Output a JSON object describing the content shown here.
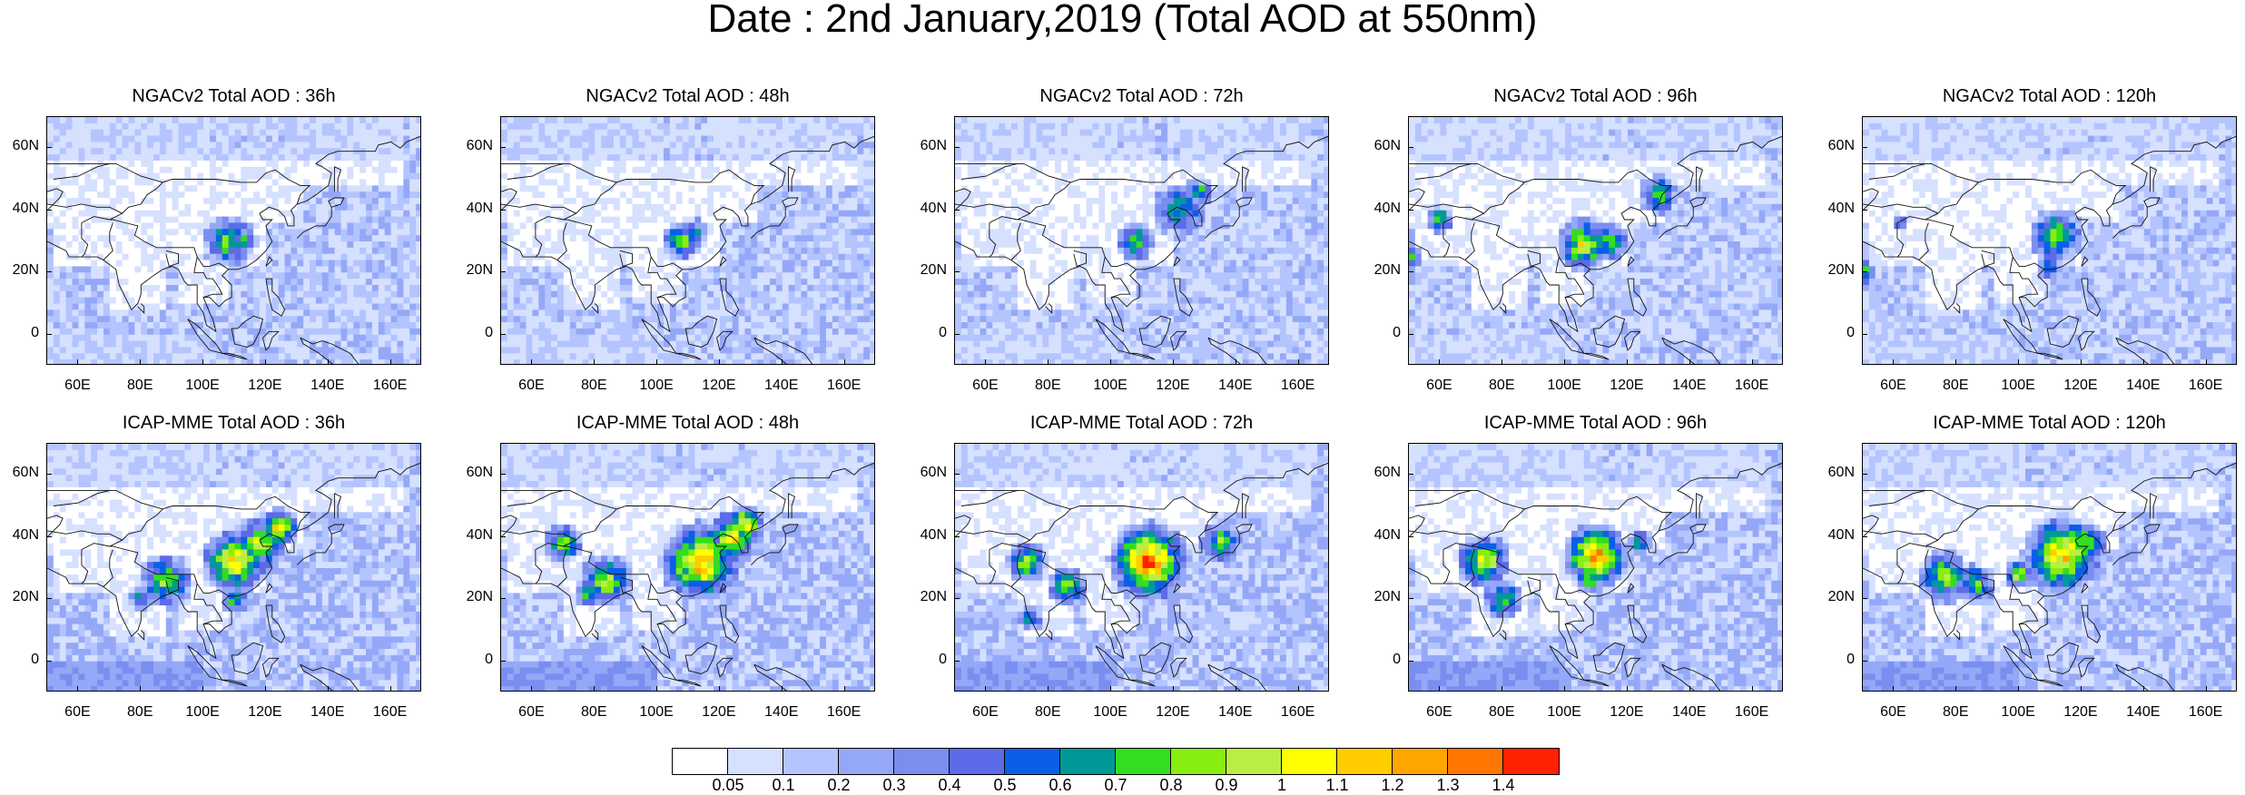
{
  "title": "Date : 2nd January,2019 (Total AOD at 550nm)",
  "map": {
    "y_labels": [
      "60N",
      "40N",
      "20N",
      "0"
    ],
    "x_labels": [
      "60E",
      "80E",
      "100E",
      "120E",
      "140E",
      "160E"
    ]
  },
  "panels": [
    {
      "title": "NGACv2 Total AOD : 36h",
      "model": "NGACv2",
      "lead": "36h"
    },
    {
      "title": "NGACv2 Total AOD : 48h",
      "model": "NGACv2",
      "lead": "48h"
    },
    {
      "title": "NGACv2 Total AOD : 72h",
      "model": "NGACv2",
      "lead": "72h"
    },
    {
      "title": "NGACv2 Total AOD : 96h",
      "model": "NGACv2",
      "lead": "96h"
    },
    {
      "title": "NGACv2 Total AOD : 120h",
      "model": "NGACv2",
      "lead": "120h"
    },
    {
      "title": "ICAP-MME Total AOD : 36h",
      "model": "ICAP-MME",
      "lead": "36h"
    },
    {
      "title": "ICAP-MME Total AOD : 48h",
      "model": "ICAP-MME",
      "lead": "48h"
    },
    {
      "title": "ICAP-MME Total AOD : 72h",
      "model": "ICAP-MME",
      "lead": "72h"
    },
    {
      "title": "ICAP-MME Total AOD : 96h",
      "model": "ICAP-MME",
      "lead": "96h"
    },
    {
      "title": "ICAP-MME Total AOD : 120h",
      "model": "ICAP-MME",
      "lead": "120h"
    }
  ],
  "colorbar": {
    "labels": [
      "0.05",
      "0.1",
      "0.2",
      "0.3",
      "0.4",
      "0.5",
      "0.6",
      "0.7",
      "0.8",
      "0.9",
      "1",
      "1.1",
      "1.2",
      "1.3",
      "1.4"
    ],
    "colors": [
      "#ffffff",
      "#d6e0ff",
      "#b3c4ff",
      "#95a8f7",
      "#7a8ef0",
      "#5c6be8",
      "#0a5fe6",
      "#009999",
      "#33dd22",
      "#88ee11",
      "#bbee44",
      "#ffff00",
      "#ffcc00",
      "#ffa500",
      "#ff7700",
      "#ff2200"
    ]
  }
}
